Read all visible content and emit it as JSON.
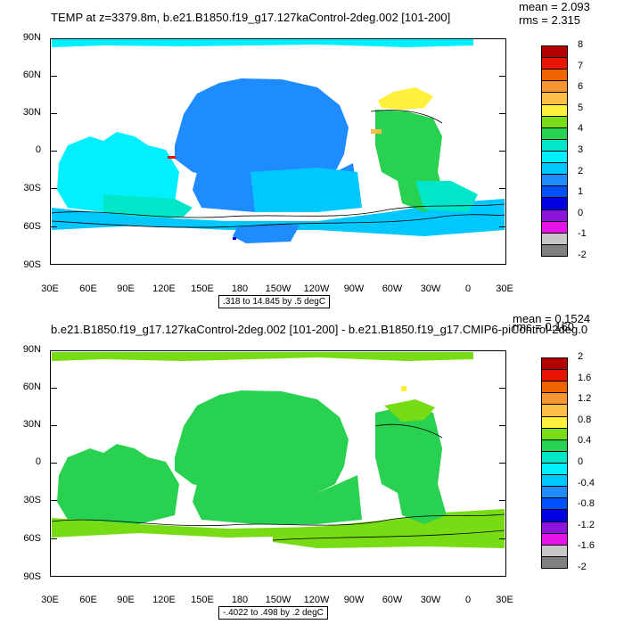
{
  "panels": [
    {
      "title": "TEMP at z=3379.8m, b.e21.B1850.f19_g17.127kaControl-2deg.002 [101-200]",
      "mean": "mean = 2.093",
      "rms": "rms = 2.315",
      "range_info": ".318 to 14.845 by .5 degC",
      "lat_labels": [
        "90N",
        "60N",
        "30N",
        "0",
        "30S",
        "60S",
        "90S"
      ],
      "lon_labels": [
        "30E",
        "60E",
        "90E",
        "120E",
        "150E",
        "180",
        "150W",
        "120W",
        "90W",
        "60W",
        "30W",
        "0",
        "30E"
      ],
      "colorbar_labels": [
        "8",
        "7",
        "6",
        "5",
        "4",
        "3",
        "2",
        "1",
        "0",
        "-1",
        "-2"
      ],
      "colorbar_colors": [
        "#b40000",
        "#e61400",
        "#f06400",
        "#f89632",
        "#ffbe46",
        "#fff03c",
        "#78dc14",
        "#28d250",
        "#00e6c8",
        "#00f0ff",
        "#00c8ff",
        "#1e8cff",
        "#0050ff",
        "#0000e1",
        "#8c14dc",
        "#e614e6",
        "#c8c8c8",
        "#808080"
      ]
    },
    {
      "title": "b.e21.B1850.f19_g17.127kaControl-2deg.002 [101-200] - b.e21.B1850.f19_g17.CMIP6-piControl-2deg.0",
      "mean": "mean = 0.1524",
      "rms": "rms = 0.160",
      "range_info": "-.4022 to .498 by .2 degC",
      "lat_labels": [
        "90N",
        "60N",
        "30N",
        "0",
        "30S",
        "60S",
        "90S"
      ],
      "lon_labels": [
        "30E",
        "60E",
        "90E",
        "120E",
        "150E",
        "180",
        "150W",
        "120W",
        "90W",
        "60W",
        "30W",
        "0",
        "30E"
      ],
      "colorbar_labels": [
        "2",
        "1.6",
        "1.2",
        "0.8",
        "0.4",
        "0",
        "-0.4",
        "-0.8",
        "-1.2",
        "-1.6",
        "-2"
      ],
      "colorbar_colors": [
        "#b40000",
        "#e61400",
        "#f06400",
        "#f89632",
        "#ffbe46",
        "#fff03c",
        "#78dc14",
        "#28d250",
        "#00e6c8",
        "#00f0ff",
        "#00c8ff",
        "#1e8cff",
        "#0050ff",
        "#0000e1",
        "#8c14dc",
        "#e614e6",
        "#c8c8c8",
        "#808080"
      ]
    }
  ]
}
